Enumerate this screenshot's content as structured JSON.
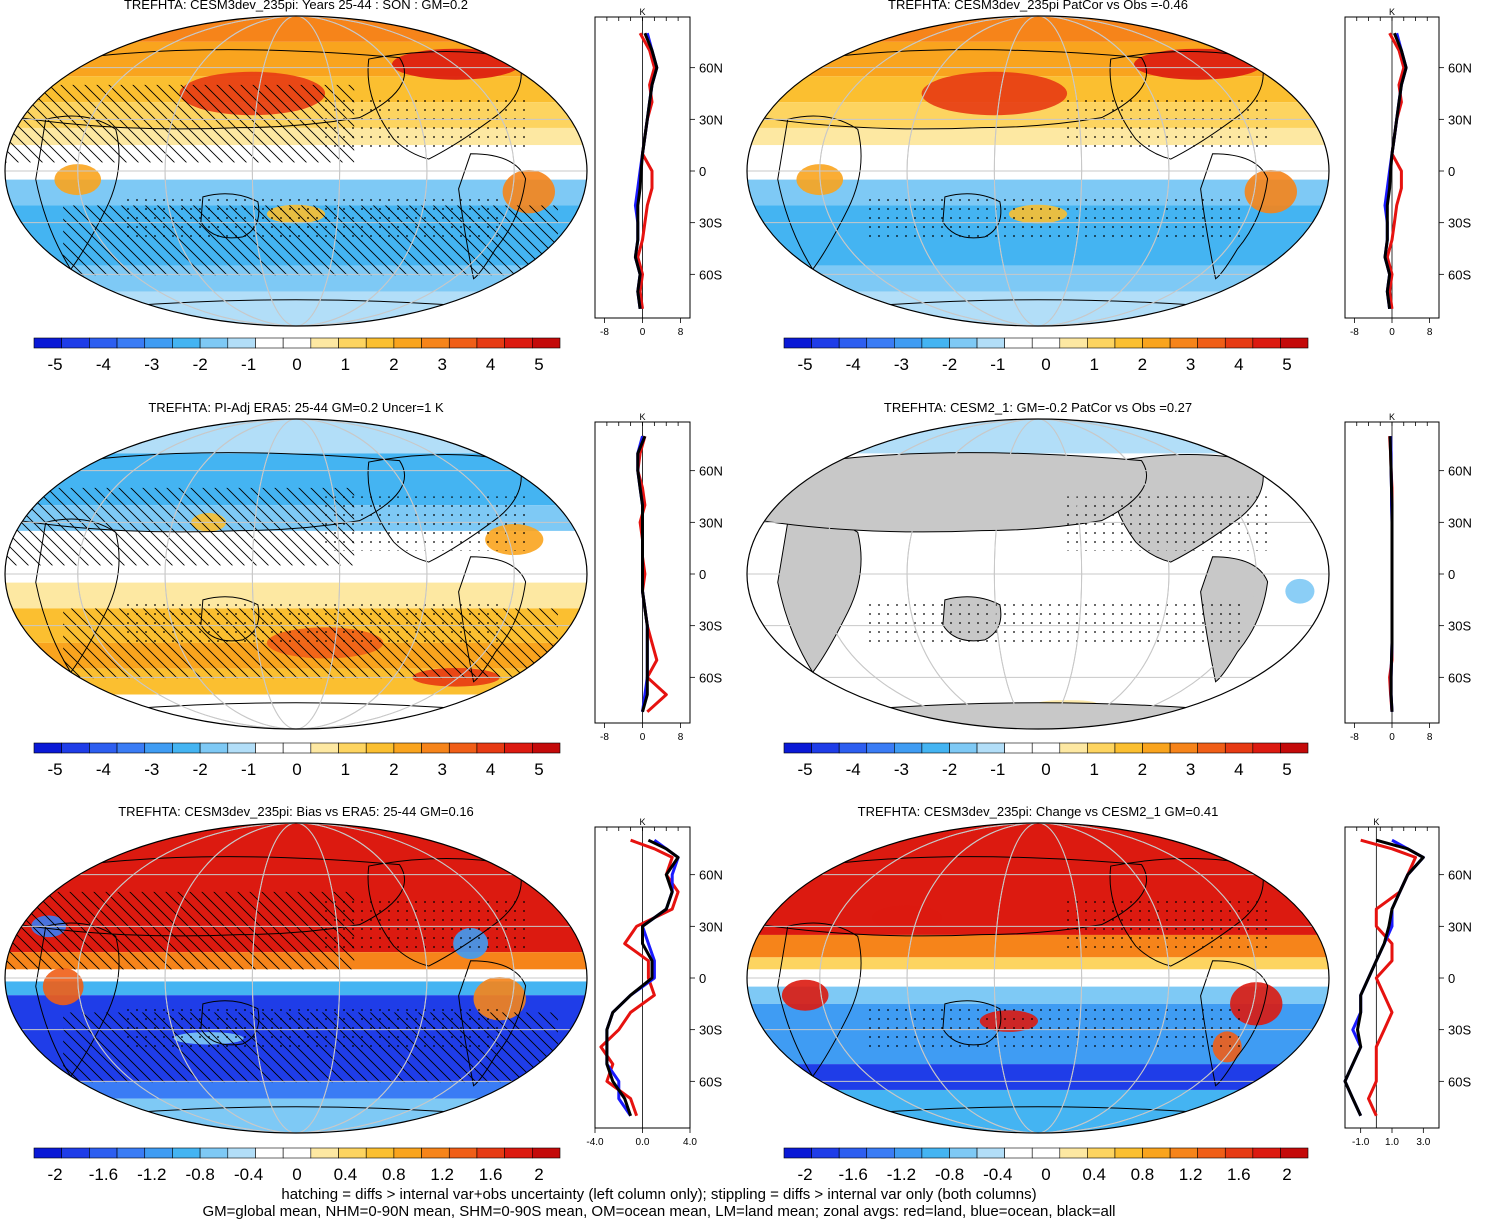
{
  "footer": {
    "line1": "hatching = diffs > internal var+obs uncertainty (left column only); stippling = diffs > internal var only (both columns)",
    "line2": "GM=global mean, NHM=0-90N mean, SHM=0-90S mean, OM=ocean mean, LM=land mean; zonal avgs: red=land, blue=ocean, black=all"
  },
  "colors": {
    "land": "#e6120f",
    "ocean": "#1a1aff",
    "all": "#000000",
    "landmask": "#c8c8c8",
    "grid": "#c8c8c8",
    "scale": [
      "#0a19d6",
      "#1f3de8",
      "#2d5ef0",
      "#3a7cf5",
      "#3f9cf3",
      "#44b4f2",
      "#7ec9f5",
      "#b2def8",
      "#ffffff",
      "#ffffff",
      "#fde8a2",
      "#fdd460",
      "#fbbf30",
      "#f9a41e",
      "#f6841a",
      "#f05e17",
      "#e73a13",
      "#dc1a10",
      "#c40a0a"
    ]
  },
  "colorbars": {
    "temp": {
      "labels": [
        "-5",
        "-4",
        "-3",
        "-2",
        "-1",
        "0",
        "1",
        "2",
        "3",
        "4",
        "5"
      ]
    },
    "bias": {
      "labels": [
        "-2",
        "-1.6",
        "-1.2",
        "-0.8",
        "-0.4",
        "0",
        "0.4",
        "0.8",
        "1.2",
        "1.6",
        "2"
      ]
    }
  },
  "chart_data": [
    {
      "type": "heatmap",
      "panel_name": "panel-model-son",
      "title": "TREFHTA: CESM3dev_235pi: Years 25-44 : SON : GM=0.2",
      "colorbar": "temp",
      "pattern": "warm-nh",
      "hatching": true,
      "stippling": true,
      "profile": {
        "unit": "K",
        "xticks": [
          "-8",
          "0",
          "8"
        ],
        "xlim": [
          -10,
          10
        ],
        "yticks": [
          "60N",
          "30N",
          "0",
          "30S",
          "60S"
        ],
        "lat": [
          80,
          70,
          60,
          50,
          40,
          30,
          20,
          10,
          0,
          -10,
          -20,
          -30,
          -40,
          -50,
          -60,
          -70,
          -80
        ],
        "land": [
          -0.5,
          1.5,
          2.5,
          1.5,
          2,
          1,
          0.5,
          0,
          2,
          2,
          1,
          0.5,
          0,
          -1,
          0,
          -0.5,
          0
        ],
        "ocean": [
          1,
          2,
          3,
          2,
          1.5,
          1,
          0.5,
          0,
          -0.5,
          -1,
          -1.5,
          -1,
          -1,
          -1.5,
          -0.5,
          -1,
          -0.5
        ],
        "all": [
          0.5,
          2,
          3,
          2,
          1.5,
          1,
          0.5,
          0,
          -0.3,
          -0.5,
          -1,
          -1,
          -1,
          -1.5,
          -0.5,
          -1,
          -0.5
        ]
      }
    },
    {
      "type": "heatmap",
      "panel_name": "panel-model-patcor",
      "title": "TREFHTA: CESM3dev_235pi PatCor vs Obs =-0.46",
      "colorbar": "temp",
      "pattern": "warm-nh",
      "hatching": false,
      "stippling": true,
      "profile": {
        "unit": "K",
        "xticks": [
          "-8",
          "0",
          "8"
        ],
        "xlim": [
          -10,
          10
        ],
        "yticks": [
          "60N",
          "30N",
          "0",
          "30S",
          "60S"
        ],
        "lat": [
          80,
          70,
          60,
          50,
          40,
          30,
          20,
          10,
          0,
          -10,
          -20,
          -30,
          -40,
          -50,
          -60,
          -70,
          -80
        ],
        "land": [
          -0.5,
          1.5,
          2.5,
          1.5,
          2,
          1,
          0.5,
          0,
          2,
          2,
          1,
          0.5,
          0,
          -1,
          0,
          -0.5,
          0
        ],
        "ocean": [
          1,
          2,
          3,
          2,
          1.5,
          1,
          0.5,
          0,
          -0.5,
          -1,
          -1.5,
          -1,
          -1,
          -1.5,
          -0.5,
          -1,
          -0.5
        ],
        "all": [
          0.5,
          2,
          3,
          2,
          1.5,
          1,
          0.5,
          0,
          -0.3,
          -0.5,
          -1,
          -1,
          -1,
          -1.5,
          -0.5,
          -1,
          -0.5
        ]
      }
    },
    {
      "type": "heatmap",
      "panel_name": "panel-obs-era5",
      "title": "TREFHTA: PI-Adj ERA5: 25-44 GM=0.2 Uncer=1 K",
      "colorbar": "temp",
      "pattern": "cool-nh",
      "hatching": true,
      "stippling": true,
      "profile": {
        "unit": "K",
        "xticks": [
          "-8",
          "0",
          "8"
        ],
        "xlim": [
          -10,
          10
        ],
        "yticks": [
          "60N",
          "30N",
          "0",
          "30S",
          "60S"
        ],
        "lat": [
          80,
          70,
          60,
          50,
          40,
          30,
          20,
          10,
          0,
          -10,
          -20,
          -30,
          -40,
          -50,
          -60,
          -70,
          -80
        ],
        "land": [
          0.5,
          -0.5,
          -1,
          0,
          0.5,
          -0.5,
          0,
          0,
          0.5,
          0,
          0.5,
          1,
          2,
          3,
          1,
          5,
          1
        ],
        "ocean": [
          0,
          -1,
          -1,
          -0.5,
          0,
          0,
          0,
          0,
          0,
          0,
          0.5,
          1,
          1,
          1,
          1,
          0.5,
          0
        ],
        "all": [
          0.5,
          -1,
          -1,
          -0.5,
          0,
          0,
          0,
          0,
          0,
          0,
          0.5,
          1,
          1,
          1,
          1,
          1,
          0
        ]
      }
    },
    {
      "type": "heatmap",
      "panel_name": "panel-cesm2",
      "title": "TREFHTA: CESM2_1: GM=-0.2 PatCor vs Obs =0.27",
      "colorbar": "temp",
      "pattern": "neutral",
      "hatching": false,
      "stippling": true,
      "profile": {
        "unit": "K",
        "xticks": [
          "-8",
          "0",
          "8"
        ],
        "xlim": [
          -10,
          10
        ],
        "yticks": [
          "60N",
          "30N",
          "0",
          "30S",
          "60S"
        ],
        "lat": [
          80,
          70,
          60,
          50,
          40,
          30,
          20,
          10,
          0,
          -10,
          -20,
          -30,
          -40,
          -50,
          -60,
          -70,
          -80
        ],
        "land": [
          -0.5,
          -0.3,
          -0.2,
          0,
          0,
          0,
          0,
          0,
          0,
          0,
          0,
          0,
          0,
          0,
          -0.5,
          -0.3,
          0
        ],
        "ocean": [
          -0.3,
          -0.2,
          -0.2,
          -0.1,
          -0.1,
          0,
          0,
          0,
          0,
          0,
          0,
          0,
          0,
          -0.1,
          -0.2,
          -0.2,
          0
        ],
        "all": [
          -0.4,
          -0.3,
          -0.2,
          -0.1,
          0,
          0,
          0,
          0,
          0,
          0,
          0,
          0,
          0,
          -0.1,
          -0.2,
          -0.2,
          0
        ]
      }
    },
    {
      "type": "heatmap",
      "panel_name": "panel-bias-era5",
      "title": "TREFHTA: CESM3dev_235pi: Bias vs ERA5: 25-44  GM=0.16",
      "colorbar": "bias",
      "pattern": "bias",
      "hatching": true,
      "stippling": true,
      "profile": {
        "unit": "K",
        "xticks": [
          "-4.0",
          "0.0",
          "4.0"
        ],
        "xlim": [
          -4,
          4
        ],
        "yticks": [
          "60N",
          "30N",
          "0",
          "30S",
          "60S"
        ],
        "lat": [
          80,
          75,
          70,
          60,
          50,
          40,
          30,
          20,
          10,
          0,
          -10,
          -20,
          -30,
          -40,
          -50,
          -60,
          -70,
          -80
        ],
        "land": [
          -1,
          1,
          2.5,
          2,
          3,
          2.5,
          -0.5,
          -1.5,
          0.5,
          0.5,
          1,
          -1,
          -2,
          -3.5,
          -2.5,
          -3,
          -1,
          -0.5
        ],
        "ocean": [
          1,
          2,
          3,
          2.5,
          2.5,
          2,
          0,
          0.5,
          1,
          1,
          -1,
          -2.5,
          -3,
          -3,
          -3,
          -2,
          -2,
          -1
        ],
        "all": [
          0.5,
          2,
          3,
          2,
          2.5,
          2,
          0,
          0,
          0.8,
          0.8,
          -1,
          -2.5,
          -3,
          -3,
          -3,
          -2.5,
          -1.5,
          -1
        ]
      }
    },
    {
      "type": "heatmap",
      "panel_name": "panel-change-cesm2",
      "title": "TREFHTA: CESM3dev_235pi: Change vs CESM2_1 GM=0.41",
      "colorbar": "bias",
      "pattern": "change",
      "hatching": false,
      "stippling": true,
      "profile": {
        "unit": "K",
        "xticks": [
          "-1.0",
          "1.0",
          "3.0"
        ],
        "xlim": [
          -2,
          4
        ],
        "yticks": [
          "60N",
          "30N",
          "0",
          "30S",
          "60S"
        ],
        "lat": [
          80,
          75,
          70,
          60,
          50,
          40,
          30,
          20,
          10,
          0,
          -10,
          -20,
          -30,
          -40,
          -50,
          -60,
          -70,
          -80
        ],
        "land": [
          -1,
          1,
          2.5,
          2,
          1.5,
          0,
          0,
          1,
          1,
          0,
          0.5,
          1,
          0.5,
          0,
          0,
          0,
          -0.5,
          0
        ],
        "ocean": [
          1,
          2,
          3,
          2,
          1.5,
          1,
          1,
          0.5,
          0,
          -0.5,
          -1,
          -1,
          -1.5,
          -1,
          -1.5,
          -2,
          -1.5,
          -1
        ],
        "all": [
          0,
          2,
          3,
          2,
          1.5,
          1,
          0.8,
          0.5,
          0,
          -0.5,
          -1,
          -1,
          -1.2,
          -1,
          -1.5,
          -2,
          -1.5,
          -1
        ]
      }
    }
  ]
}
